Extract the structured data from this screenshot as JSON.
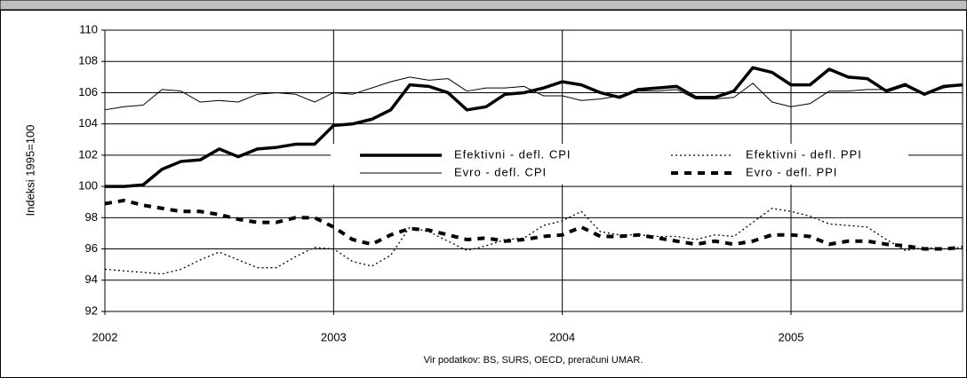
{
  "chart_data": {
    "type": "line",
    "y_label": "Indeksi 1995=100",
    "note": "Vir podatkov: BS, SURS, OECD, preračuni UMAR.",
    "x": [
      2002,
      2002.083,
      2002.167,
      2002.25,
      2002.333,
      2002.417,
      2002.5,
      2002.583,
      2002.667,
      2002.75,
      2002.833,
      2002.917,
      2003,
      2003.083,
      2003.167,
      2003.25,
      2003.333,
      2003.417,
      2003.5,
      2003.583,
      2003.667,
      2003.75,
      2003.833,
      2003.917,
      2004,
      2004.083,
      2004.167,
      2004.25,
      2004.333,
      2004.417,
      2004.5,
      2004.583,
      2004.667,
      2004.75,
      2004.833,
      2004.917,
      2005,
      2005.083,
      2005.167,
      2005.25,
      2005.333,
      2005.417,
      2005.5,
      2005.583,
      2005.667,
      2005.75
    ],
    "series": [
      {
        "name": "Efektivni - defl. CPI",
        "color": "#000000",
        "style": "thick",
        "values": [
          100.0,
          100.0,
          100.1,
          101.1,
          101.6,
          101.7,
          102.4,
          101.9,
          102.4,
          102.5,
          102.7,
          102.7,
          103.9,
          104.0,
          104.3,
          104.9,
          106.5,
          106.4,
          106.0,
          104.9,
          105.1,
          105.9,
          106.0,
          106.3,
          106.7,
          106.5,
          106.0,
          105.7,
          106.2,
          106.3,
          106.4,
          105.7,
          105.7,
          106.1,
          107.6,
          107.3,
          106.5,
          106.5,
          107.5,
          107.0,
          106.9,
          106.1,
          106.5,
          105.9,
          106.4,
          106.5
        ]
      },
      {
        "name": "Efektivni - defl. PPI",
        "color": "#000000",
        "style": "dotted",
        "values": [
          94.7,
          94.6,
          94.5,
          94.4,
          94.7,
          95.3,
          95.8,
          95.3,
          94.8,
          94.8,
          95.5,
          96.1,
          96.0,
          95.2,
          94.9,
          95.6,
          97.4,
          97.1,
          96.5,
          95.9,
          96.2,
          96.6,
          96.7,
          97.5,
          97.8,
          98.4,
          97.1,
          96.9,
          96.9,
          96.8,
          96.8,
          96.6,
          96.9,
          96.8,
          97.7,
          98.6,
          98.4,
          98.1,
          97.6,
          97.5,
          97.4,
          96.6,
          95.9,
          96.1,
          96.0,
          96.1
        ]
      },
      {
        "name": "Evro - defl. CPI",
        "color": "#000000",
        "style": "thin",
        "values": [
          104.9,
          105.1,
          105.2,
          106.2,
          106.1,
          105.4,
          105.5,
          105.4,
          105.9,
          106.0,
          105.9,
          105.4,
          106.0,
          105.9,
          106.3,
          106.7,
          107.0,
          106.8,
          106.9,
          106.1,
          106.3,
          106.3,
          106.4,
          105.8,
          105.8,
          105.5,
          105.6,
          105.8,
          106.1,
          106.1,
          106.2,
          105.6,
          105.6,
          105.7,
          106.6,
          105.4,
          105.1,
          105.3,
          106.1,
          106.1,
          106.2,
          106.2,
          106.6,
          105.9,
          106.3,
          106.5
        ]
      },
      {
        "name": "Evro - defl. PPI",
        "color": "#000000",
        "style": "dashed",
        "values": [
          98.9,
          99.1,
          98.8,
          98.6,
          98.4,
          98.4,
          98.2,
          97.9,
          97.7,
          97.7,
          98.0,
          98.0,
          97.4,
          96.6,
          96.3,
          96.9,
          97.3,
          97.2,
          96.9,
          96.6,
          96.7,
          96.5,
          96.6,
          96.8,
          96.9,
          97.4,
          96.8,
          96.8,
          96.9,
          96.7,
          96.5,
          96.3,
          96.5,
          96.3,
          96.5,
          96.9,
          96.9,
          96.8,
          96.3,
          96.5,
          96.5,
          96.3,
          96.2,
          96.0,
          96.0,
          96.1
        ]
      }
    ],
    "xlim": [
      2002,
      2005.75
    ],
    "xticks": [
      2002,
      2003,
      2004,
      2005
    ],
    "ylim": [
      92,
      110
    ],
    "yticks": [
      92,
      94,
      96,
      98,
      100,
      102,
      104,
      106,
      108,
      110
    ],
    "grid": true
  }
}
